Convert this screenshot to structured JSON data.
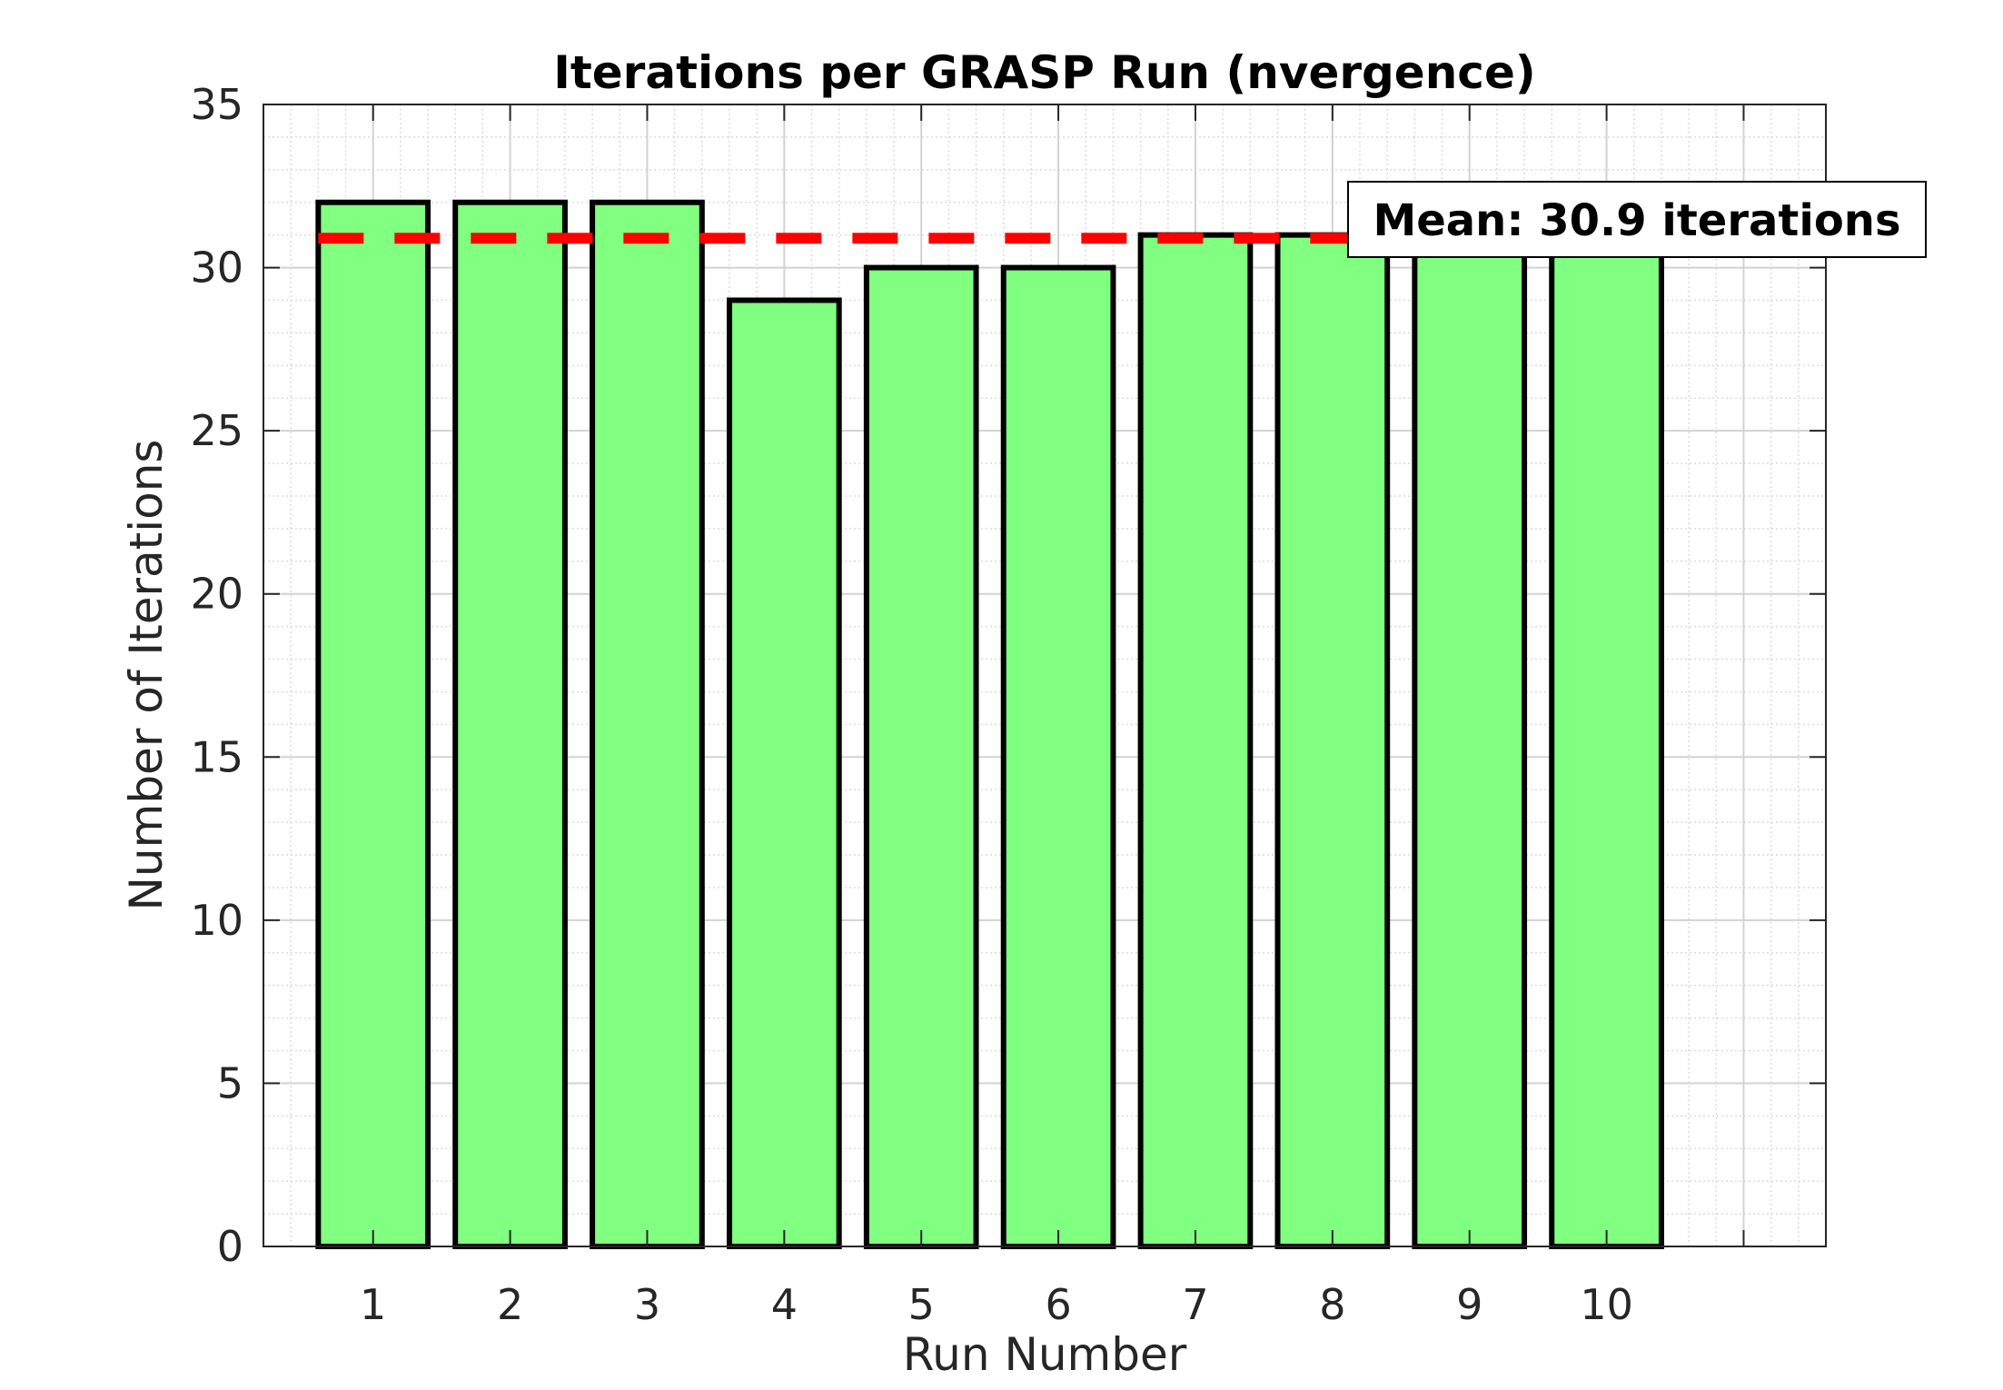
{
  "chart_data": {
    "type": "bar",
    "title": "Iterations per GRASP Run (nvergence)",
    "xlabel": "Run Number",
    "ylabel": "Number of Iterations",
    "categories": [
      "1",
      "2",
      "3",
      "4",
      "5",
      "6",
      "7",
      "8",
      "9",
      "10"
    ],
    "values": [
      32,
      32,
      32,
      29,
      30,
      30,
      31,
      31,
      31,
      31
    ],
    "xlim": [
      0.2,
      11.6
    ],
    "ylim": [
      0,
      35
    ],
    "yticks": [
      0,
      5,
      10,
      15,
      20,
      25,
      30,
      35
    ],
    "grid": true,
    "minor_grid": true,
    "bar_color": "#80ff80",
    "bar_edge_color": "#000000",
    "mean": {
      "value": 30.9,
      "label": "Mean: 30.9 iterations",
      "color": "#ff0000",
      "style": "dashed"
    }
  }
}
